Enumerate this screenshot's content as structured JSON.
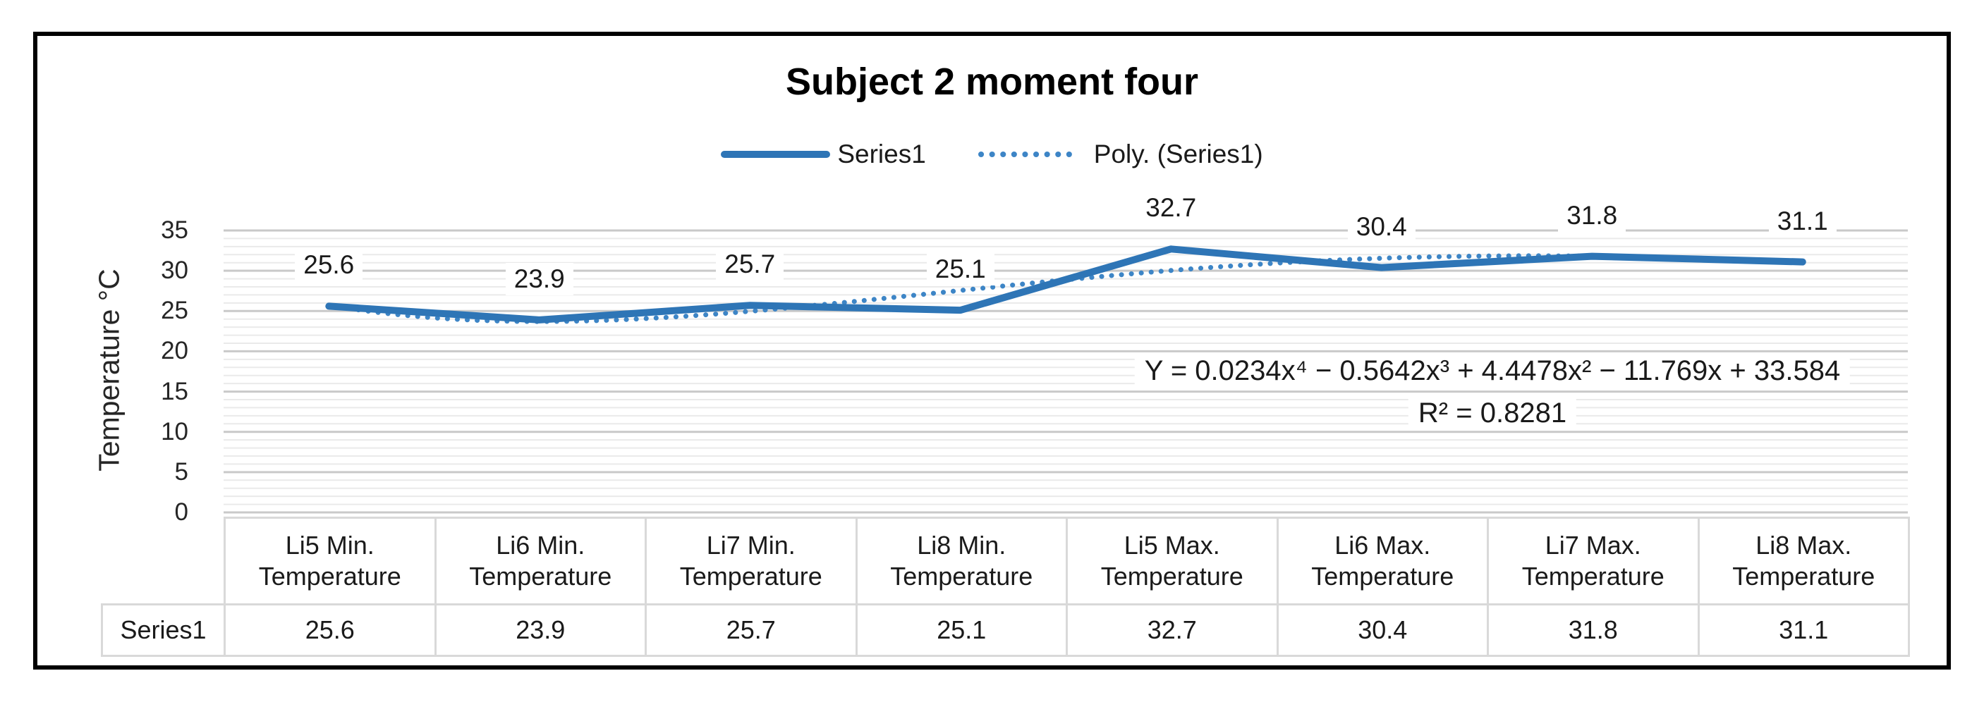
{
  "title": "Subject 2 moment four",
  "legend": {
    "series1_label": "Series1",
    "poly_label": "Poly. (Series1)"
  },
  "y_axis": {
    "title": "Temperature °C"
  },
  "equation": {
    "line1": "Y = 0.0234x⁴ − 0.5642x³ + 4.4478x² − 11.769x + 33.584",
    "line2": "R² = 0.8281"
  },
  "table": {
    "row_label": "Series1"
  },
  "chart_data": {
    "type": "line",
    "title": "Subject 2 moment four",
    "categories": [
      "Li5 Min. Temperature",
      "Li6 Min. Temperature",
      "Li7 Min. Temperature",
      "Li8 Min. Temperature",
      "Li5 Max. Temperature",
      "Li6 Max. Temperature",
      "Li7 Max. Temperature",
      "Li8 Max. Temperature"
    ],
    "series": [
      {
        "name": "Series1",
        "values": [
          25.6,
          23.9,
          25.7,
          25.1,
          32.7,
          30.4,
          31.8,
          31.1
        ]
      }
    ],
    "trendline": {
      "name": "Poly. (Series1)",
      "kind": "polynomial",
      "order": 4,
      "coefficients": [
        0.0234,
        -0.5642,
        4.4478,
        -11.769,
        33.584
      ],
      "r_squared": 0.8281
    },
    "ylabel": "Temperature °C",
    "ylim": [
      0,
      35
    ],
    "ytick_step": 5,
    "yticks": [
      35,
      30,
      25,
      20,
      15,
      10,
      5,
      0
    ],
    "minor_gridlines": true,
    "legend_position": "top",
    "data_labels": true,
    "colors": {
      "series": "#2E75B6",
      "trendline": "#3D85C6",
      "major_grid": "#C9C9C9",
      "minor_grid": "#EAEAEA",
      "table_border": "#D9D9D9",
      "frame_border": "#000000"
    }
  }
}
